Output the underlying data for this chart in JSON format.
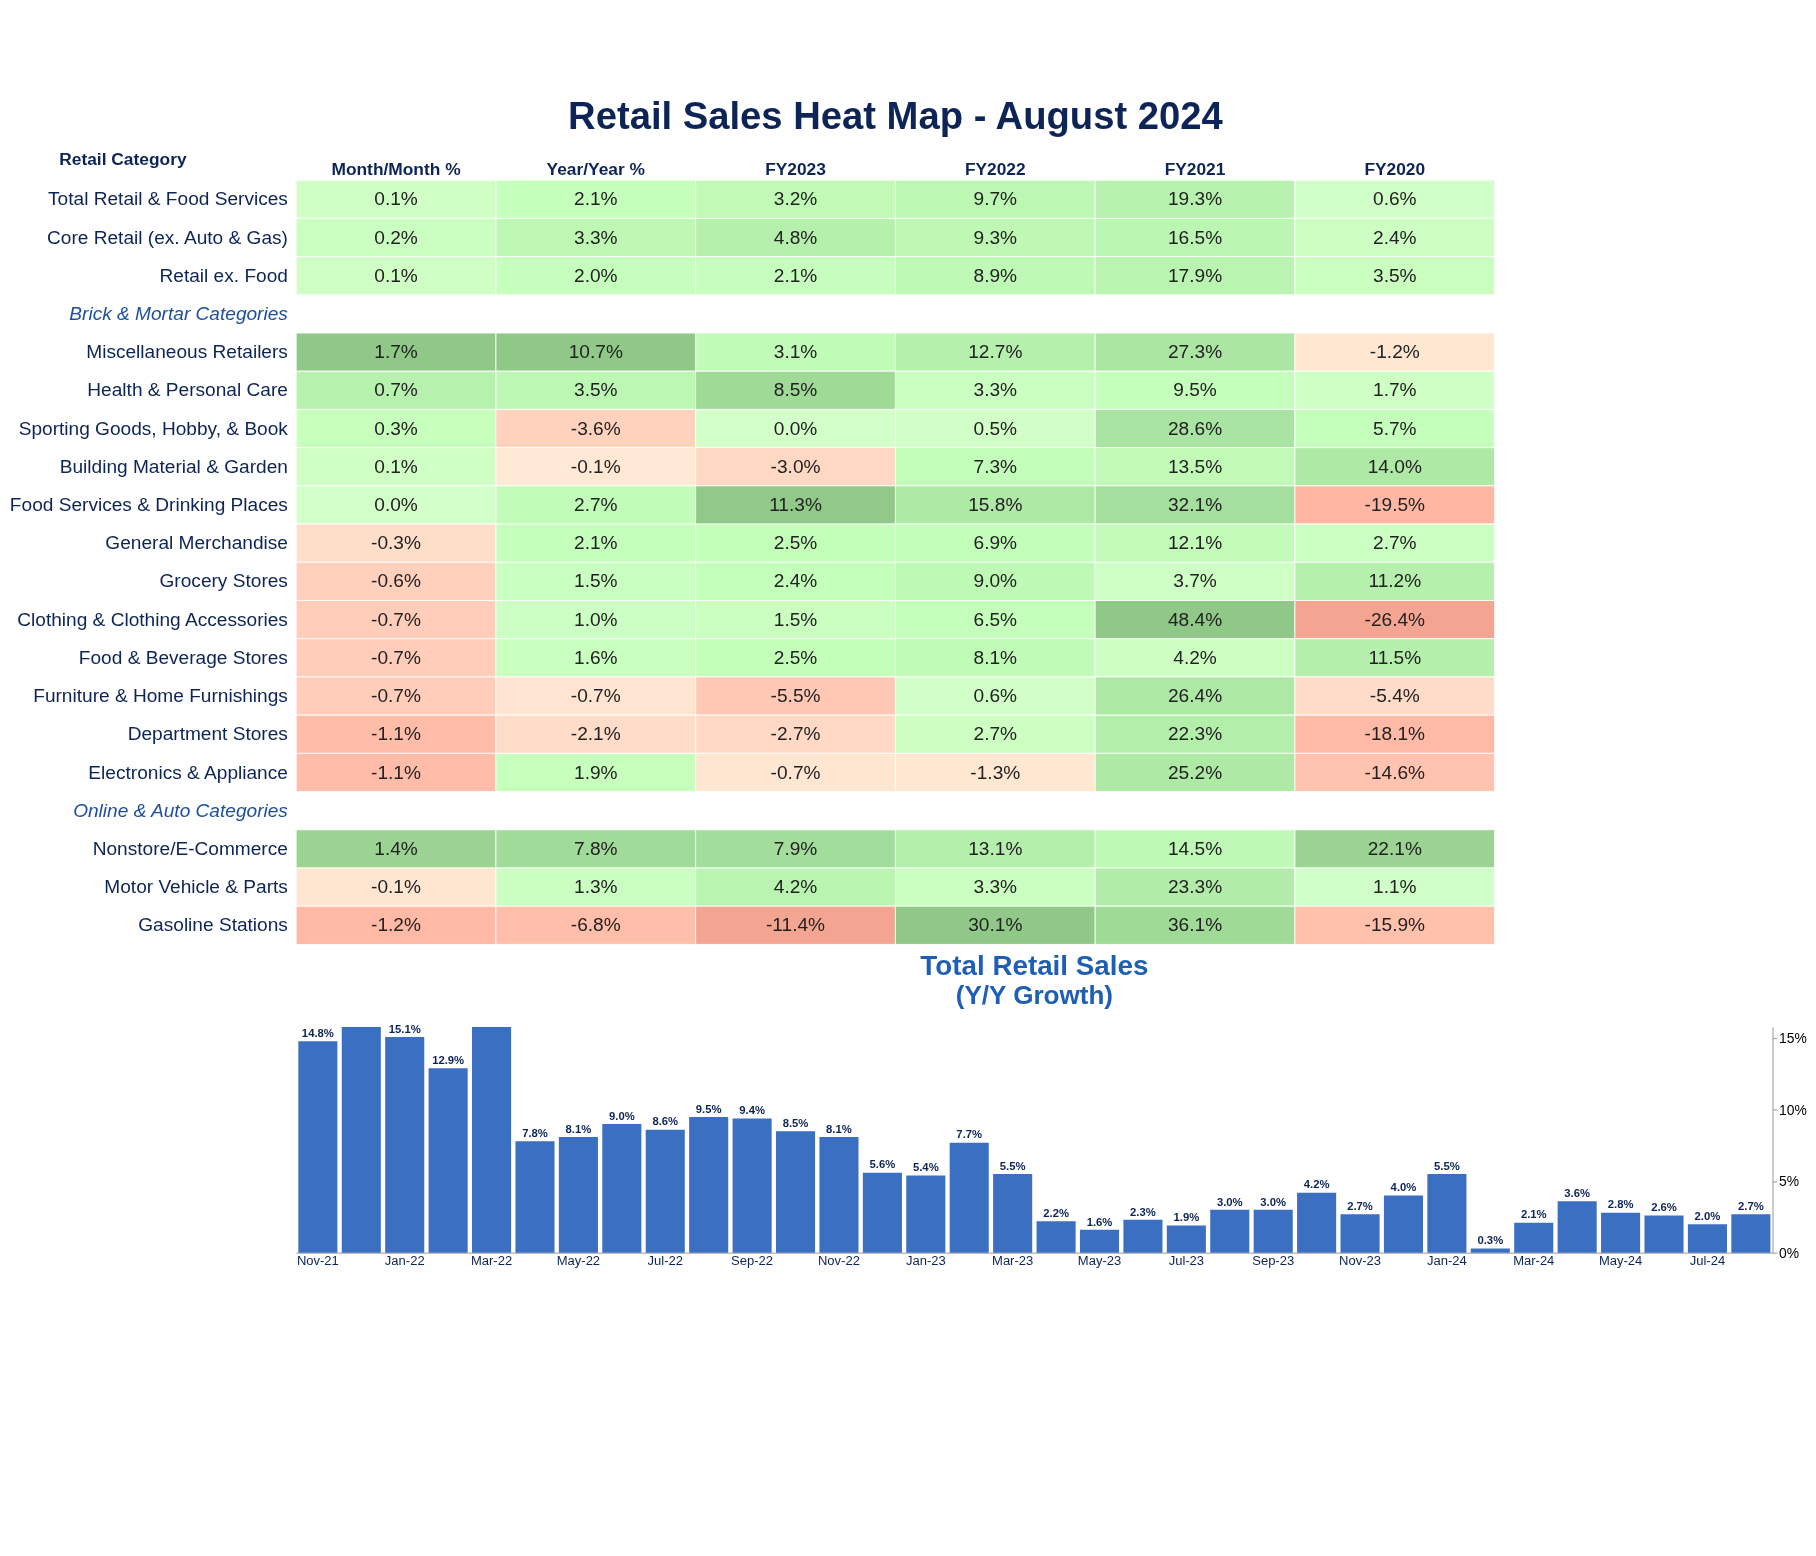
{
  "chart_data": [
    {
      "type": "heatmap",
      "title": "Retail Sales Heat Map -  August 2024",
      "ylabel": "Retail Category",
      "categories": [
        "Month/Month %",
        "Year/Year %",
        "FY2023",
        "FY2022",
        "FY2021",
        "FY2020"
      ],
      "y_categories": [
        "Total Retail & Food Services",
        "Core Retail (ex. Auto & Gas)",
        "Retail ex. Food",
        "Brick & Mortar Categories",
        "Miscellaneous Retailers",
        "Health & Personal Care",
        "Sporting Goods, Hobby, & Book",
        "Building Material & Garden",
        "Food Services & Drinking Places",
        "General Merchandise",
        "Grocery Stores",
        "Clothing & Clothing Accessories",
        "Food & Beverage Stores",
        "Furniture & Home Furnishings",
        "Department Stores",
        "Electronics & Appliance",
        "Online & Auto Categories",
        "Nonstore/E-Commerce",
        "Motor Vehicle & Parts",
        "Gasoline Stations"
      ],
      "cells": [
        [
          0.1,
          2.1,
          3.2,
          9.7,
          19.3,
          0.6
        ],
        [
          0.2,
          3.3,
          4.8,
          9.3,
          16.5,
          2.4
        ],
        [
          0.1,
          2.0,
          2.1,
          8.9,
          17.9,
          3.5
        ],
        [
          null,
          null,
          null,
          null,
          null,
          null
        ],
        [
          1.7,
          10.7,
          3.1,
          12.7,
          27.3,
          -1.2
        ],
        [
          0.7,
          3.5,
          8.5,
          3.3,
          9.5,
          1.7
        ],
        [
          0.3,
          -3.6,
          0.0,
          0.5,
          28.6,
          5.7
        ],
        [
          0.1,
          -0.1,
          -3.0,
          7.3,
          13.5,
          14.0
        ],
        [
          0.0,
          2.7,
          11.3,
          15.8,
          32.1,
          -19.5
        ],
        [
          -0.3,
          2.1,
          2.5,
          6.9,
          12.1,
          2.7
        ],
        [
          -0.6,
          1.5,
          2.4,
          9.0,
          3.7,
          11.2
        ],
        [
          -0.7,
          1.0,
          1.5,
          6.5,
          48.4,
          -26.4
        ],
        [
          -0.7,
          1.6,
          2.5,
          8.1,
          4.2,
          11.5
        ],
        [
          -0.7,
          -0.7,
          -5.5,
          0.6,
          26.4,
          -5.4
        ],
        [
          -1.1,
          -2.1,
          -2.7,
          2.7,
          22.3,
          -18.1
        ],
        [
          -1.1,
          1.9,
          -0.7,
          -1.3,
          25.2,
          -14.6
        ],
        [
          null,
          null,
          null,
          null,
          null,
          null
        ],
        [
          1.4,
          7.8,
          7.9,
          13.1,
          14.5,
          22.1
        ],
        [
          -0.1,
          1.3,
          4.2,
          3.3,
          23.3,
          1.1
        ],
        [
          -1.2,
          -6.8,
          -11.4,
          30.1,
          36.1,
          -15.9
        ]
      ],
      "cell_labels": [
        [
          "0.1%",
          "2.1%",
          "3.2%",
          "9.7%",
          "19.3%",
          "0.6%"
        ],
        [
          "0.2%",
          "3.3%",
          "4.8%",
          "9.3%",
          "16.5%",
          "2.4%"
        ],
        [
          "0.1%",
          "2.0%",
          "2.1%",
          "8.9%",
          "17.9%",
          "3.5%"
        ],
        [
          null,
          null,
          null,
          null,
          null,
          null
        ],
        [
          "1.7%",
          "10.7%",
          "3.1%",
          "12.7%",
          "27.3%",
          "-1.2%"
        ],
        [
          "0.7%",
          "3.5%",
          "8.5%",
          "3.3%",
          "9.5%",
          "1.7%"
        ],
        [
          "0.3%",
          "-3.6%",
          "0.0%",
          "0.5%",
          "28.6%",
          "5.7%"
        ],
        [
          "0.1%",
          "-0.1%",
          "-3.0%",
          "7.3%",
          "13.5%",
          "14.0%"
        ],
        [
          "0.0%",
          "2.7%",
          "11.3%",
          "15.8%",
          "32.1%",
          "-19.5%"
        ],
        [
          "-0.3%",
          "2.1%",
          "2.5%",
          "6.9%",
          "12.1%",
          "2.7%"
        ],
        [
          "-0.6%",
          "1.5%",
          "2.4%",
          "9.0%",
          "3.7%",
          "11.2%"
        ],
        [
          "-0.7%",
          "1.0%",
          "1.5%",
          "6.5%",
          "48.4%",
          "-26.4%"
        ],
        [
          "-0.7%",
          "1.6%",
          "2.5%",
          "8.1%",
          "4.2%",
          "11.5%"
        ],
        [
          "-0.7%",
          "-0.7%",
          "-5.5%",
          "0.6%",
          "26.4%",
          "-5.4%"
        ],
        [
          "-1.1%",
          "-2.1%",
          "-2.7%",
          "2.7%",
          "22.3%",
          "-18.1%"
        ],
        [
          "-1.1%",
          "1.9%",
          "-0.7%",
          "-1.3%",
          "25.2%",
          "-14.6%"
        ],
        [
          null,
          null,
          null,
          null,
          null,
          null
        ],
        [
          "1.4%",
          "7.8%",
          "7.9%",
          "13.1%",
          "14.5%",
          "22.1%"
        ],
        [
          "-0.1%",
          "1.3%",
          "4.2%",
          "3.3%",
          "23.3%",
          "1.1%"
        ],
        [
          "-1.2%",
          "-6.8%",
          "-11.4%",
          "30.1%",
          "36.1%",
          "-15.9%"
        ]
      ]
    },
    {
      "type": "bar",
      "title": "Total Retail Sales",
      "subtitle": "(Y/Y Growth)",
      "categories": [
        "Nov-21",
        null,
        "Jan-22",
        null,
        "Mar-22",
        null,
        "May-22",
        null,
        "Jul-22",
        null,
        "Sep-22",
        null,
        "Nov-22",
        null,
        "Jan-23",
        null,
        "Mar-23",
        null,
        "May-23",
        null,
        "Jul-23",
        null,
        "Sep-23",
        null,
        "Nov-23",
        null,
        "Jan-24",
        null,
        "Mar-24",
        null,
        "May-24",
        null,
        "Jul-24",
        null
      ],
      "series": [
        {
          "color": "#3b6fc1",
          "values": [
            14.8,
            15.8,
            15.1,
            12.9,
            15.8,
            7.8,
            8.1,
            9.0,
            8.6,
            9.5,
            9.4,
            8.5,
            8.1,
            5.6,
            5.4,
            7.7,
            5.5,
            2.2,
            1.6,
            2.3,
            1.9,
            3.0,
            3.0,
            4.2,
            2.7,
            4.0,
            5.5,
            0.3,
            2.1,
            3.6,
            2.8,
            2.6,
            2.0,
            2.7
          ],
          "value_labels": [
            "14.8%",
            null,
            "15.1%",
            "12.9%",
            null,
            "7.8%",
            "8.1%",
            "9.0%",
            "8.6%",
            "9.5%",
            "9.4%",
            "8.5%",
            "8.1%",
            "5.6%",
            "5.4%",
            "7.7%",
            "5.5%",
            "2.2%",
            "1.6%",
            "2.3%",
            "1.9%",
            "3.0%",
            "3.0%",
            "4.2%",
            "2.7%",
            "4.0%",
            "5.5%",
            "0.3%",
            "2.1%",
            "3.6%",
            "2.8%",
            "2.6%",
            "2.0%",
            "2.7%"
          ]
        }
      ],
      "ylim": [
        0,
        15.8
      ],
      "yticks": [
        {
          "value": 0,
          "label": "0%"
        },
        {
          "value": 5,
          "label": "5%"
        },
        {
          "value": 10,
          "label": "10%"
        },
        {
          "value": 15,
          "label": "15%"
        }
      ]
    }
  ]
}
